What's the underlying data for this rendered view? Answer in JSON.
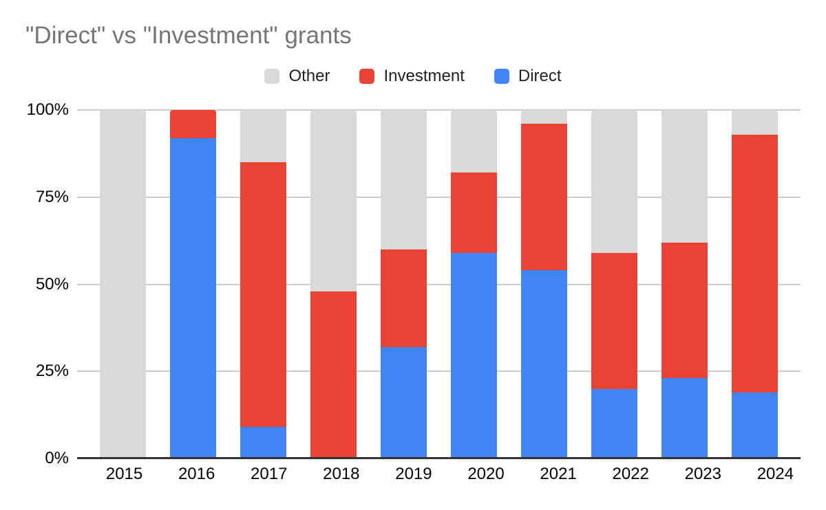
{
  "chart_data": {
    "type": "bar",
    "stacked": true,
    "percent_stacked": true,
    "title": "\"Direct\" vs \"Investment\" grants",
    "categories": [
      "2015",
      "2016",
      "2017",
      "2018",
      "2019",
      "2020",
      "2021",
      "2022",
      "2023",
      "2024"
    ],
    "series": [
      {
        "name": "Other",
        "color": "#d9d9d9",
        "values": [
          100,
          0,
          15,
          52,
          40,
          18,
          4,
          41,
          38,
          7
        ]
      },
      {
        "name": "Investment",
        "color": "#ea4335",
        "values": [
          0,
          8,
          76,
          48,
          28,
          23,
          42,
          39,
          39,
          74
        ]
      },
      {
        "name": "Direct",
        "color": "#4285f4",
        "values": [
          0,
          92,
          9,
          0,
          32,
          59,
          54,
          20,
          23,
          19
        ]
      }
    ],
    "legend_entries": [
      "Other",
      "Investment",
      "Direct"
    ],
    "legend_position": "top",
    "xlabel": "",
    "ylabel": "",
    "ylim": [
      0,
      100
    ],
    "y_ticks": [
      {
        "label": "0%",
        "value": 0
      },
      {
        "label": "25%",
        "value": 25
      },
      {
        "label": "50%",
        "value": 50
      },
      {
        "label": "75%",
        "value": 75
      },
      {
        "label": "100%",
        "value": 100
      }
    ],
    "grid": true
  },
  "style": {
    "title_color": "#757575",
    "grid_color": "#cccccc",
    "axis_line_color": "#333333",
    "label_color": "#000000",
    "background": "#ffffff"
  }
}
